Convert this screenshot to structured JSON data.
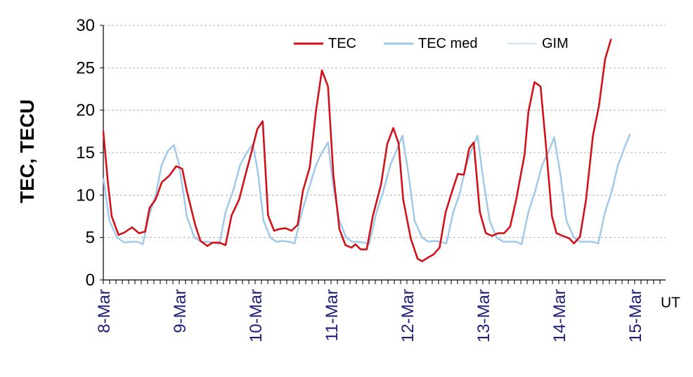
{
  "chart_data": {
    "type": "line",
    "ylabel": "TEC, TECU",
    "xunit": "UT",
    "ylim": [
      0,
      30
    ],
    "yticks": [
      0,
      5,
      10,
      15,
      20,
      25,
      30
    ],
    "xlim": [
      0,
      7.3
    ],
    "x_labels": [
      {
        "x": 0,
        "label": "8-Mar"
      },
      {
        "x": 1,
        "label": "9-Mar"
      },
      {
        "x": 2,
        "label": "10-Mar"
      },
      {
        "x": 3,
        "label": "11-Mar"
      },
      {
        "x": 4,
        "label": "12-Mar"
      },
      {
        "x": 5,
        "label": "13-Mar"
      },
      {
        "x": 6,
        "label": "14-Mar"
      },
      {
        "x": 7,
        "label": "15-Mar"
      }
    ],
    "x_minor_step": 0.0833333,
    "grid": "horizontal-dashed",
    "legend": "top-right",
    "colors": {
      "TEC": "#d0121b",
      "TEC med": "#9ec8ea",
      "GIM": "#9ec8ea"
    },
    "series": [
      {
        "name": "TEC",
        "color": "#d0121b",
        "points": [
          [
            0.0,
            17.5
          ],
          [
            0.06,
            11.5
          ],
          [
            0.11,
            7.5
          ],
          [
            0.2,
            5.3
          ],
          [
            0.28,
            5.6
          ],
          [
            0.38,
            6.2
          ],
          [
            0.47,
            5.5
          ],
          [
            0.55,
            5.7
          ],
          [
            0.61,
            8.5
          ],
          [
            0.69,
            9.5
          ],
          [
            0.77,
            11.5
          ],
          [
            0.87,
            12.3
          ],
          [
            0.96,
            13.4
          ],
          [
            1.04,
            13.1
          ],
          [
            1.1,
            10.5
          ],
          [
            1.21,
            6.5
          ],
          [
            1.28,
            4.6
          ],
          [
            1.37,
            4.0
          ],
          [
            1.44,
            4.4
          ],
          [
            1.53,
            4.4
          ],
          [
            1.61,
            4.1
          ],
          [
            1.69,
            7.6
          ],
          [
            1.79,
            9.5
          ],
          [
            1.87,
            12.3
          ],
          [
            1.95,
            15.0
          ],
          [
            2.03,
            17.8
          ],
          [
            2.1,
            18.7
          ],
          [
            2.17,
            7.6
          ],
          [
            2.25,
            5.8
          ],
          [
            2.32,
            6.0
          ],
          [
            2.4,
            6.1
          ],
          [
            2.48,
            5.8
          ],
          [
            2.56,
            6.5
          ],
          [
            2.63,
            10.5
          ],
          [
            2.72,
            13.3
          ],
          [
            2.8,
            19.8
          ],
          [
            2.88,
            24.7
          ],
          [
            2.96,
            22.8
          ],
          [
            3.03,
            12.5
          ],
          [
            3.11,
            6.0
          ],
          [
            3.19,
            4.1
          ],
          [
            3.27,
            3.8
          ],
          [
            3.32,
            4.2
          ],
          [
            3.39,
            3.6
          ],
          [
            3.47,
            3.6
          ],
          [
            3.55,
            7.5
          ],
          [
            3.66,
            11.3
          ],
          [
            3.74,
            16.0
          ],
          [
            3.82,
            17.9
          ],
          [
            3.89,
            16.1
          ],
          [
            3.95,
            9.5
          ],
          [
            4.05,
            4.9
          ],
          [
            4.14,
            2.5
          ],
          [
            4.2,
            2.2
          ],
          [
            4.27,
            2.6
          ],
          [
            4.35,
            3.0
          ],
          [
            4.43,
            3.8
          ],
          [
            4.51,
            8.0
          ],
          [
            4.59,
            10.3
          ],
          [
            4.67,
            12.5
          ],
          [
            4.75,
            12.4
          ],
          [
            4.82,
            15.5
          ],
          [
            4.88,
            16.2
          ],
          [
            4.96,
            8.0
          ],
          [
            5.04,
            5.5
          ],
          [
            5.12,
            5.2
          ],
          [
            5.2,
            5.5
          ],
          [
            5.28,
            5.5
          ],
          [
            5.36,
            6.3
          ],
          [
            5.44,
            9.5
          ],
          [
            5.55,
            14.8
          ],
          [
            5.6,
            19.8
          ],
          [
            5.68,
            23.3
          ],
          [
            5.76,
            22.8
          ],
          [
            5.83,
            16.0
          ],
          [
            5.91,
            7.5
          ],
          [
            5.97,
            5.5
          ],
          [
            6.05,
            5.2
          ],
          [
            6.14,
            4.9
          ],
          [
            6.2,
            4.3
          ],
          [
            6.28,
            5.1
          ],
          [
            6.36,
            9.5
          ],
          [
            6.45,
            17.0
          ],
          [
            6.53,
            20.5
          ],
          [
            6.61,
            26.0
          ],
          [
            6.69,
            28.4
          ]
        ]
      },
      {
        "name": "TEC med",
        "color": "#9ec8ea",
        "points": [
          [
            0.0,
            12.0
          ],
          [
            0.08,
            7.0
          ],
          [
            0.18,
            5.0
          ],
          [
            0.28,
            4.4
          ],
          [
            0.36,
            4.5
          ],
          [
            0.45,
            4.5
          ],
          [
            0.52,
            4.2
          ],
          [
            0.6,
            7.5
          ],
          [
            0.69,
            10.0
          ],
          [
            0.77,
            13.6
          ],
          [
            0.85,
            15.2
          ],
          [
            0.93,
            15.9
          ],
          [
            1.0,
            13.5
          ],
          [
            1.1,
            7.5
          ],
          [
            1.2,
            5.0
          ],
          [
            1.29,
            4.5
          ],
          [
            1.37,
            4.5
          ],
          [
            1.45,
            4.4
          ],
          [
            1.53,
            4.2
          ],
          [
            1.61,
            8.0
          ],
          [
            1.71,
            10.5
          ],
          [
            1.8,
            13.5
          ],
          [
            1.89,
            15.0
          ],
          [
            1.97,
            16.0
          ],
          [
            2.04,
            12.5
          ],
          [
            2.11,
            7.0
          ],
          [
            2.2,
            5.0
          ],
          [
            2.28,
            4.5
          ],
          [
            2.36,
            4.6
          ],
          [
            2.44,
            4.5
          ],
          [
            2.52,
            4.3
          ],
          [
            2.6,
            7.5
          ],
          [
            2.7,
            10.5
          ],
          [
            2.8,
            13.5
          ],
          [
            2.88,
            15.0
          ],
          [
            2.96,
            16.2
          ],
          [
            3.03,
            11.0
          ],
          [
            3.11,
            7.0
          ],
          [
            3.2,
            5.0
          ],
          [
            3.28,
            4.5
          ],
          [
            3.36,
            4.5
          ],
          [
            3.43,
            4.4
          ],
          [
            3.5,
            4.2
          ],
          [
            3.6,
            8.0
          ],
          [
            3.69,
            10.5
          ],
          [
            3.78,
            13.5
          ],
          [
            3.86,
            15.2
          ],
          [
            3.94,
            17.0
          ],
          [
            4.02,
            12.5
          ],
          [
            4.1,
            7.0
          ],
          [
            4.2,
            5.0
          ],
          [
            4.28,
            4.5
          ],
          [
            4.36,
            4.6
          ],
          [
            4.44,
            4.5
          ],
          [
            4.52,
            4.3
          ],
          [
            4.61,
            8.0
          ],
          [
            4.69,
            10.0
          ],
          [
            4.78,
            13.5
          ],
          [
            4.86,
            15.5
          ],
          [
            4.93,
            17.0
          ],
          [
            5.01,
            11.5
          ],
          [
            5.09,
            7.0
          ],
          [
            5.18,
            5.0
          ],
          [
            5.27,
            4.5
          ],
          [
            5.36,
            4.5
          ],
          [
            5.44,
            4.5
          ],
          [
            5.51,
            4.2
          ],
          [
            5.6,
            8.0
          ],
          [
            5.69,
            10.5
          ],
          [
            5.78,
            13.5
          ],
          [
            5.86,
            15.0
          ],
          [
            5.94,
            16.8
          ],
          [
            6.02,
            12.5
          ],
          [
            6.1,
            7.0
          ],
          [
            6.2,
            5.0
          ],
          [
            6.28,
            4.5
          ],
          [
            6.36,
            4.5
          ],
          [
            6.44,
            4.5
          ],
          [
            6.52,
            4.3
          ],
          [
            6.61,
            8.0
          ],
          [
            6.7,
            10.5
          ],
          [
            6.78,
            13.5
          ],
          [
            6.87,
            15.7
          ],
          [
            6.94,
            17.2
          ]
        ]
      },
      {
        "name": "GIM",
        "color": "#9ec8ea",
        "points": []
      }
    ]
  }
}
